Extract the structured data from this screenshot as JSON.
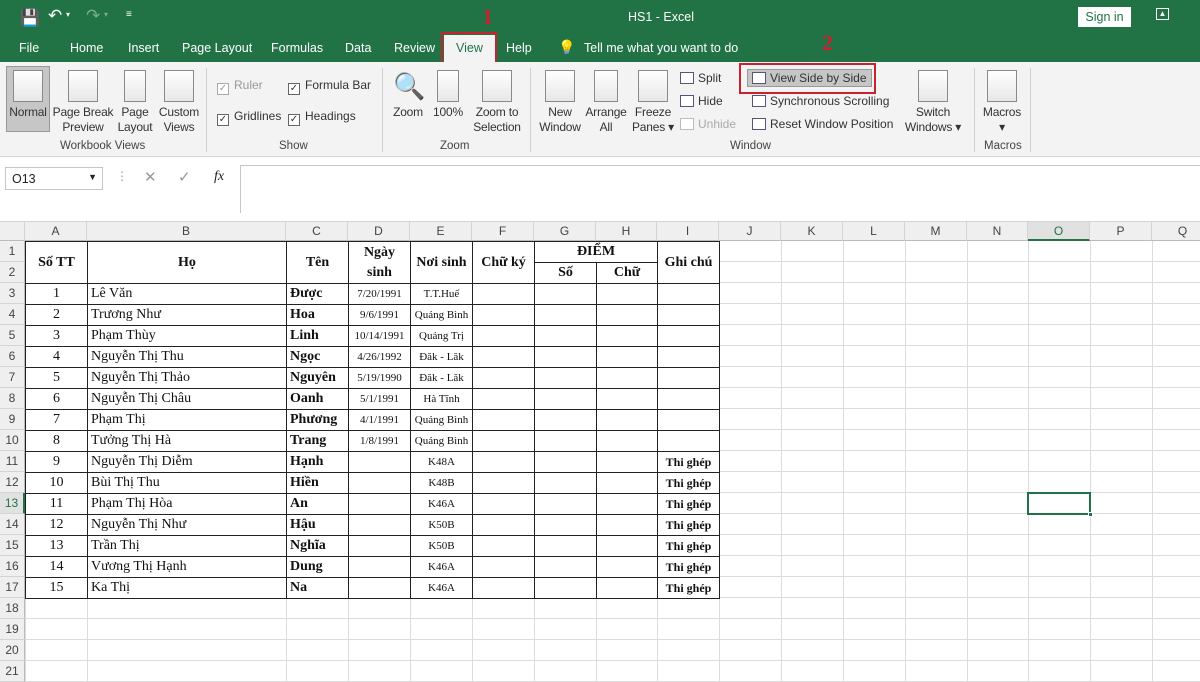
{
  "window": {
    "title": "HS1  -  Excel",
    "sign_in": "Sign in",
    "accent": "#217346"
  },
  "quick_access": [
    "save-icon",
    "undo-icon",
    "redo-icon",
    "customize-icon"
  ],
  "tabs": [
    {
      "label": "File"
    },
    {
      "label": "Home"
    },
    {
      "label": "Insert"
    },
    {
      "label": "Page Layout"
    },
    {
      "label": "Formulas"
    },
    {
      "label": "Data"
    },
    {
      "label": "Review"
    },
    {
      "label": "View",
      "active": true
    },
    {
      "label": "Help"
    }
  ],
  "tell_me": "Tell me what you want to do",
  "annotations": {
    "step1": "1",
    "step2": "2",
    "color": "#c8232c"
  },
  "ribbon": {
    "workbook_views": {
      "label": "Workbook Views",
      "normal": "Normal",
      "page_break": "Page Break Preview",
      "page_layout": "Page Layout",
      "custom_views": "Custom Views"
    },
    "show": {
      "label": "Show",
      "ruler": "Ruler",
      "formula_bar": "Formula Bar",
      "gridlines": "Gridlines",
      "headings": "Headings"
    },
    "zoom": {
      "label": "Zoom",
      "zoom": "Zoom",
      "hundred": "100%",
      "zoom_sel": "Zoom to Selection"
    },
    "window": {
      "label": "Window",
      "new_window": "New Window",
      "arrange_all": "Arrange All",
      "freeze": "Freeze Panes",
      "split": "Split",
      "hide": "Hide",
      "unhide": "Unhide",
      "side_by_side": "View Side by Side",
      "sync": "Synchronous Scrolling",
      "reset": "Reset Window Position",
      "switch": "Switch Windows"
    },
    "macros": {
      "label": "Macros",
      "macros": "Macros"
    }
  },
  "formula_bar": {
    "name_box": "O13",
    "value": ""
  },
  "sheet": {
    "columns": [
      "A",
      "B",
      "C",
      "D",
      "E",
      "F",
      "G",
      "H",
      "I",
      "J",
      "K",
      "L",
      "M",
      "N",
      "O",
      "P",
      "Q"
    ],
    "selected_cell": "O13",
    "headers": {
      "stt": "Số TT",
      "ho": "Họ",
      "ten": "Tên",
      "ngay_sinh": "Ngày sinh",
      "noi_sinh": "Nơi sinh",
      "chu_ky": "Chữ ký",
      "diem": "ĐIỂM",
      "so": "Số",
      "chu": "Chữ",
      "ghi_chu": "Ghi chú"
    },
    "rows": [
      [
        "1",
        "Lê Văn",
        "Được",
        "7/20/1991",
        "T.T.Huế",
        ""
      ],
      [
        "2",
        "Trương Như",
        "Hoa",
        "9/6/1991",
        "Quảng Bình",
        ""
      ],
      [
        "3",
        "Phạm Thùy",
        "Linh",
        "10/14/1991",
        "Quảng Trị",
        ""
      ],
      [
        "4",
        "Nguyễn Thị Thu",
        "Ngọc",
        "4/26/1992",
        "Đăk - Lăk",
        ""
      ],
      [
        "5",
        "Nguyễn Thị Thảo",
        "Nguyên",
        "5/19/1990",
        "Đăk - Lăk",
        ""
      ],
      [
        "6",
        "Nguyễn Thị Châu",
        "Oanh",
        "5/1/1991",
        "Hà Tĩnh",
        ""
      ],
      [
        "7",
        "Phạm Thị",
        "Phương",
        "4/1/1991",
        "Quảng Bình",
        ""
      ],
      [
        "8",
        "Tưởng Thị Hà",
        "Trang",
        "1/8/1991",
        "Quảng Bình",
        ""
      ],
      [
        "9",
        "Nguyễn Thị Diễm",
        "Hạnh",
        "",
        "K48A",
        "Thi ghép"
      ],
      [
        "10",
        "Bùi Thị Thu",
        "Hiền",
        "",
        "K48B",
        "Thi ghép"
      ],
      [
        "11",
        "Phạm Thị Hòa",
        "An",
        "",
        "K46A",
        "Thi ghép"
      ],
      [
        "12",
        "Nguyễn Thị Như",
        "Hậu",
        "",
        "K50B",
        "Thi ghép"
      ],
      [
        "13",
        "Trần Thị",
        "Nghĩa",
        "",
        "K50B",
        "Thi ghép"
      ],
      [
        "14",
        "Vương Thị Hạnh",
        "Dung",
        "",
        "K46A",
        "Thi ghép"
      ],
      [
        "15",
        "Ka Thị",
        "Na",
        "",
        "K46A",
        "Thi ghép"
      ]
    ],
    "row_numbers": [
      "1",
      "2",
      "3",
      "4",
      "5",
      "6",
      "7",
      "8",
      "9",
      "10",
      "11",
      "12",
      "13",
      "14",
      "15",
      "16",
      "17",
      "18",
      "19",
      "20",
      "21"
    ]
  }
}
